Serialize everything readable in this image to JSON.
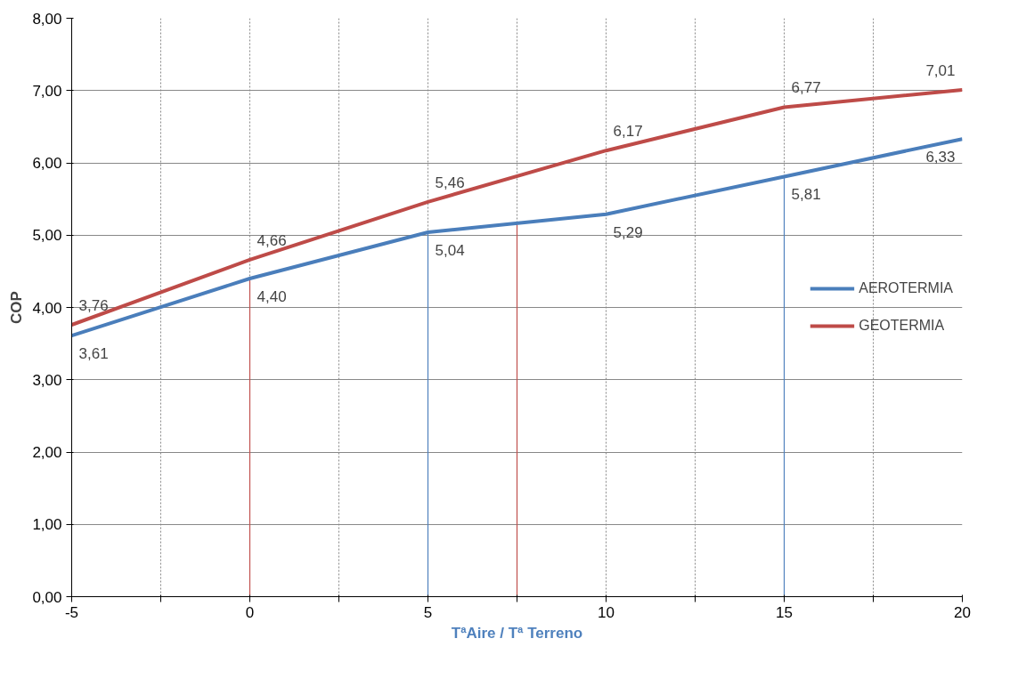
{
  "chart_data": {
    "type": "line",
    "xlabel": "TªAire / Tª Terreno",
    "ylabel": "COP",
    "x": [
      -5,
      0,
      5,
      10,
      15,
      20
    ],
    "series": [
      {
        "name": "AEROTERMIA",
        "color": "#4a7ebb",
        "values": [
          3.61,
          4.4,
          5.04,
          5.29,
          5.81,
          6.33
        ],
        "value_labels": [
          "3,61",
          "4,40",
          "5,04",
          "5,29",
          "5,81",
          "6,33"
        ]
      },
      {
        "name": "GEOTERMIA",
        "color": "#be4b48",
        "values": [
          3.76,
          4.66,
          5.46,
          6.17,
          6.77,
          7.01
        ],
        "value_labels": [
          "3,76",
          "4,66",
          "5,46",
          "6,17",
          "6,77",
          "7,01"
        ]
      }
    ],
    "xlim": [
      -5,
      20
    ],
    "xticks": [
      -5,
      {
        "value": -2.5,
        "label": null
      },
      0,
      {
        "value": 2.5,
        "label": null
      },
      5,
      {
        "value": 7.5,
        "label": null
      },
      10,
      {
        "value": 12.5,
        "label": null
      },
      15,
      {
        "value": 17.5,
        "label": null
      },
      20
    ],
    "ylim": [
      0,
      8
    ],
    "yticks": [
      {
        "value": 0,
        "label": "0,00"
      },
      {
        "value": 1,
        "label": "1,00"
      },
      {
        "value": 2,
        "label": "2,00"
      },
      {
        "value": 3,
        "label": "3,00"
      },
      {
        "value": 4,
        "label": "4,00"
      },
      {
        "value": 5,
        "label": "5,00"
      },
      {
        "value": 6,
        "label": "6,00"
      },
      {
        "value": 7,
        "label": "7,00"
      },
      {
        "value": 8,
        "label": "8,00"
      }
    ],
    "ref_lines": [
      {
        "axis": "x",
        "value": 0,
        "color": "#c0504d"
      },
      {
        "axis": "x",
        "value": 7.5,
        "color": "#c0504d"
      },
      {
        "axis": "x",
        "value": 5,
        "color": "#4f81bd"
      },
      {
        "axis": "x",
        "value": 15,
        "color": "#4f81bd"
      }
    ],
    "grid": true,
    "legend": "right",
    "marker": "none",
    "line_style": "solid"
  }
}
